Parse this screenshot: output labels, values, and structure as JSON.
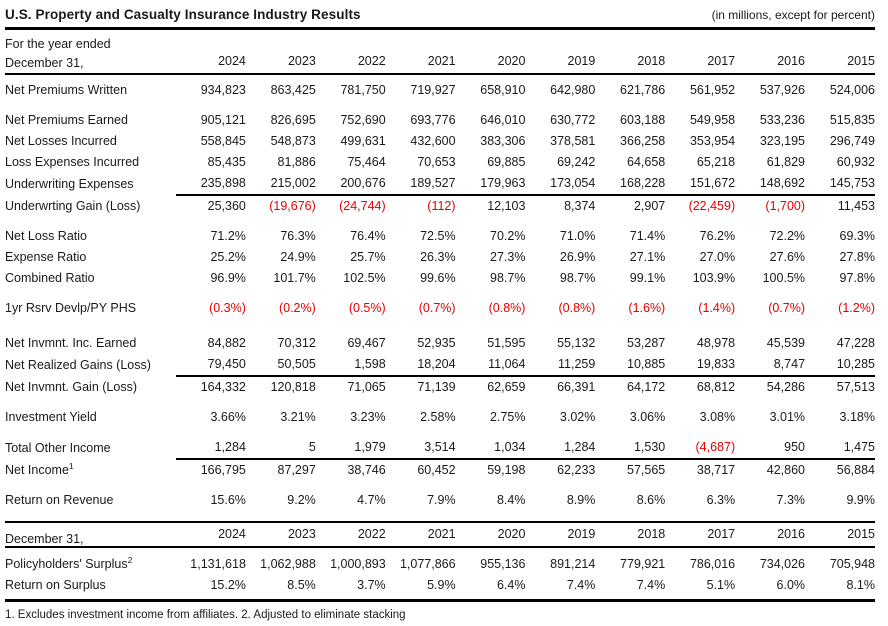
{
  "title": "U.S. Property and Casualty Insurance Industry Results",
  "units_note": "(in millions, except for percent)",
  "colors": {
    "negative": "#e60000",
    "text": "#1a1a1a",
    "rule": "#000000"
  },
  "main_table": {
    "header": {
      "line1": "For the year ended",
      "line2": "December 31,",
      "years": [
        "2024",
        "2023",
        "2022",
        "2021",
        "2020",
        "2019",
        "2018",
        "2017",
        "2016",
        "2015"
      ]
    },
    "rows": [
      {
        "label": "Net Premiums Written",
        "values": [
          "934,823",
          "863,425",
          "781,750",
          "719,927",
          "658,910",
          "642,980",
          "621,786",
          "561,952",
          "537,926",
          "524,006"
        ],
        "gap_after": true
      },
      {
        "label": "Net Premiums Earned",
        "values": [
          "905,121",
          "826,695",
          "752,690",
          "693,776",
          "646,010",
          "630,772",
          "603,188",
          "549,958",
          "533,236",
          "515,835"
        ]
      },
      {
        "label": "Net Losses Incurred",
        "values": [
          "558,845",
          "548,873",
          "499,631",
          "432,600",
          "383,306",
          "378,581",
          "366,258",
          "353,954",
          "323,195",
          "296,749"
        ]
      },
      {
        "label": "Loss Expenses Incurred",
        "values": [
          "85,435",
          "81,886",
          "75,464",
          "70,653",
          "69,885",
          "69,242",
          "64,658",
          "65,218",
          "61,829",
          "60,932"
        ]
      },
      {
        "label": "Underwriting Expenses",
        "values": [
          "235,898",
          "215,002",
          "200,676",
          "189,527",
          "179,963",
          "173,054",
          "168,228",
          "151,672",
          "148,692",
          "145,753"
        ],
        "rule_below": true
      },
      {
        "label": "Underwrting Gain (Loss)",
        "values": [
          "25,360",
          "(19,676)",
          "(24,744)",
          "(112)",
          "12,103",
          "8,374",
          "2,907",
          "(22,459)",
          "(1,700)",
          "11,453"
        ],
        "gap_after": true
      },
      {
        "label": "Net Loss Ratio",
        "values": [
          "71.2%",
          "76.3%",
          "76.4%",
          "72.5%",
          "70.2%",
          "71.0%",
          "71.4%",
          "76.2%",
          "72.2%",
          "69.3%"
        ]
      },
      {
        "label": "Expense Ratio",
        "values": [
          "25.2%",
          "24.9%",
          "25.7%",
          "26.3%",
          "27.3%",
          "26.9%",
          "27.1%",
          "27.0%",
          "27.6%",
          "27.8%"
        ]
      },
      {
        "label": "Combined Ratio",
        "values": [
          "96.9%",
          "101.7%",
          "102.5%",
          "99.6%",
          "98.7%",
          "98.7%",
          "99.1%",
          "103.9%",
          "100.5%",
          "97.8%"
        ],
        "gap_after": true
      },
      {
        "label": "1yr Rsrv Devlp/PY PHS",
        "values": [
          "(0.3%)",
          "(0.2%)",
          "(0.5%)",
          "(0.7%)",
          "(0.8%)",
          "(0.8%)",
          "(1.6%)",
          "(1.4%)",
          "(0.7%)",
          "(1.2%)"
        ],
        "gap_after": true,
        "gap_large": true
      },
      {
        "label": "Net Invmnt. Inc. Earned",
        "values": [
          "84,882",
          "70,312",
          "69,467",
          "52,935",
          "51,595",
          "55,132",
          "53,287",
          "48,978",
          "45,539",
          "47,228"
        ]
      },
      {
        "label": "Net Realized Gains (Loss)",
        "values": [
          "79,450",
          "50,505",
          "1,598",
          "18,204",
          "11,064",
          "11,259",
          "10,885",
          "19,833",
          "8,747",
          "10,285"
        ],
        "rule_below": true
      },
      {
        "label": "Net Invmnt. Gain (Loss)",
        "values": [
          "164,332",
          "120,818",
          "71,065",
          "71,139",
          "62,659",
          "66,391",
          "64,172",
          "68,812",
          "54,286",
          "57,513"
        ],
        "gap_after": true
      },
      {
        "label": "Investment Yield",
        "values": [
          "3.66%",
          "3.21%",
          "3.23%",
          "2.58%",
          "2.75%",
          "3.02%",
          "3.06%",
          "3.08%",
          "3.01%",
          "3.18%"
        ],
        "gap_after": true
      },
      {
        "label": "Total Other Income",
        "values": [
          "1,284",
          "5",
          "1,979",
          "3,514",
          "1,034",
          "1,284",
          "1,530",
          "(4,687)",
          "950",
          "1,475"
        ],
        "rule_below": true
      },
      {
        "label": "Net Income",
        "sup": "1",
        "values": [
          "166,795",
          "87,297",
          "38,746",
          "60,452",
          "59,198",
          "62,233",
          "57,565",
          "38,717",
          "42,860",
          "56,884"
        ],
        "gap_after": true
      },
      {
        "label": "Return on Revenue",
        "values": [
          "15.6%",
          "9.2%",
          "4.7%",
          "7.9%",
          "8.4%",
          "8.9%",
          "8.6%",
          "6.3%",
          "7.3%",
          "9.9%"
        ]
      }
    ]
  },
  "surplus_table": {
    "header": {
      "label": "December 31,",
      "years": [
        "2024",
        "2023",
        "2022",
        "2021",
        "2020",
        "2019",
        "2018",
        "2017",
        "2016",
        "2015"
      ]
    },
    "rows": [
      {
        "label": "Policyholders' Surplus",
        "sup": "2",
        "values": [
          "1,131,618",
          "1,062,988",
          "1,000,893",
          "1,077,866",
          "955,136",
          "891,214",
          "779,921",
          "786,016",
          "734,026",
          "705,948"
        ]
      },
      {
        "label": "Return on Surplus",
        "values": [
          "15.2%",
          "8.5%",
          "3.7%",
          "5.9%",
          "6.4%",
          "7.4%",
          "7.4%",
          "5.1%",
          "6.0%",
          "8.1%"
        ]
      }
    ]
  },
  "footnote": "1. Excludes investment income from affiliates. 2. Adjusted to eliminate stacking"
}
